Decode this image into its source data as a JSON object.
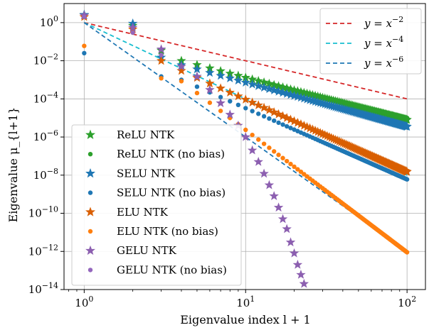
{
  "chart_data": {
    "type": "scatter",
    "title": "",
    "xlabel": "Eigenvalue index l + 1",
    "ylabel": "Eigenvalue μ_{l+1}",
    "xscale": "log",
    "yscale": "log",
    "xlim": [
      0.75,
      130
    ],
    "ylim": [
      1e-14,
      10
    ],
    "grid": true,
    "x_ticks": [
      {
        "value": 1,
        "base": "10",
        "exp": "0"
      },
      {
        "value": 10,
        "base": "10",
        "exp": "1"
      },
      {
        "value": 100,
        "base": "10",
        "exp": "2"
      }
    ],
    "y_ticks": [
      {
        "value": 1,
        "base": "10",
        "exp": "0"
      },
      {
        "value": 0.01,
        "base": "10",
        "exp": "−2"
      },
      {
        "value": 0.0001,
        "base": "10",
        "exp": "−4"
      },
      {
        "value": 1e-06,
        "base": "10",
        "exp": "−6"
      },
      {
        "value": 1e-08,
        "base": "10",
        "exp": "−8"
      },
      {
        "value": 1e-10,
        "base": "10",
        "exp": "−10"
      },
      {
        "value": 1e-12,
        "base": "10",
        "exp": "−12"
      },
      {
        "value": 1e-14,
        "base": "10",
        "exp": "−14"
      }
    ],
    "reference_lines": [
      {
        "name": "y = x^{-2}",
        "power": 2,
        "color": "#d62728",
        "pre": "y = x",
        "sup": "−2"
      },
      {
        "name": "y = x^{-4}",
        "power": 4,
        "color": "#17becf",
        "pre": "y = x",
        "sup": "−4"
      },
      {
        "name": "y = x^{-6}",
        "power": 6,
        "color": "#1f77b4",
        "pre": "y = x",
        "sup": "−6"
      }
    ],
    "reference_legend_position": "top-right",
    "series_legend_position": "lower-left",
    "series": [
      {
        "name": "ReLU NTK",
        "marker": "star",
        "color": "#2ca02c",
        "sparse": [
          [
            1,
            2.5
          ],
          [
            2,
            0.7
          ],
          [
            3,
            0.035
          ]
        ],
        "tail": {
          "start": 4,
          "end": 100,
          "y_start": 0.01,
          "y_end": 8e-06
        }
      },
      {
        "name": "ReLU NTK (no bias)",
        "marker": "circle",
        "color": "#2ca02c",
        "sparse": [
          [
            1,
            2.2
          ],
          [
            2,
            0.55
          ],
          [
            3,
            0.022
          ]
        ],
        "tail": {
          "start": 4,
          "end": 100,
          "y_start": 0.009,
          "y_end": 1e-05
        }
      },
      {
        "name": "SELU NTK",
        "marker": "star",
        "color": "#1f77b4",
        "sparse": [
          [
            1,
            2.6
          ],
          [
            2,
            0.9
          ],
          [
            3,
            0.015
          ]
        ],
        "tail": {
          "start": 4,
          "end": 100,
          "y_start": 0.006,
          "y_end": 3.5e-06
        }
      },
      {
        "name": "SELU NTK (no bias)",
        "marker": "circle",
        "color": "#1f77b4",
        "sparse": [
          [
            1,
            0.025
          ],
          [
            2,
            0.3
          ],
          [
            3,
            0.0015
          ]
        ],
        "tail": {
          "start": 4,
          "end": 100,
          "y_start": 0.001,
          "y_end": 6e-09
        }
      },
      {
        "name": "ELU NTK",
        "marker": "star",
        "color": "#d95f02",
        "sparse": [
          [
            1,
            2.0
          ],
          [
            2,
            0.45
          ],
          [
            3,
            0.01
          ]
        ],
        "tail": {
          "start": 4,
          "end": 100,
          "y_start": 0.003,
          "y_end": 1.5e-08
        }
      },
      {
        "name": "ELU NTK (no bias)",
        "marker": "circle",
        "color": "#ff7f0e",
        "sparse": [
          [
            1,
            0.06
          ],
          [
            2,
            0.3
          ],
          [
            3,
            0.0012
          ]
        ],
        "tail": {
          "start": 4,
          "end": 100,
          "y_start": 0.00085,
          "y_end": 9e-13
        }
      },
      {
        "name": "GELU NTK",
        "marker": "star",
        "color": "#8c5fb0",
        "sparse": [
          [
            1,
            2.4
          ],
          [
            2,
            0.55
          ],
          [
            3,
            0.04
          ],
          [
            4,
            0.005
          ],
          [
            5,
            0.0015
          ],
          [
            6,
            0.0003
          ],
          [
            7,
            6e-05
          ],
          [
            8,
            1.5e-05
          ],
          [
            9,
            4e-06
          ],
          [
            10,
            1e-06
          ],
          [
            11,
            2e-07
          ],
          [
            12,
            5e-08
          ],
          [
            13,
            1.2e-08
          ],
          [
            14,
            3e-09
          ],
          [
            15,
            8e-10
          ],
          [
            16,
            2e-10
          ],
          [
            17,
            5e-11
          ],
          [
            18,
            1.5e-11
          ],
          [
            19,
            3e-12
          ],
          [
            20,
            8e-13
          ],
          [
            21,
            2e-13
          ],
          [
            22,
            6e-14
          ],
          [
            23,
            2e-14
          ]
        ]
      },
      {
        "name": "GELU NTK (no bias)",
        "marker": "circle",
        "color": "#9467bd",
        "sparse": [
          [
            1,
            2.0
          ],
          [
            2,
            0.3
          ],
          [
            3,
            0.02
          ]
        ]
      }
    ]
  }
}
